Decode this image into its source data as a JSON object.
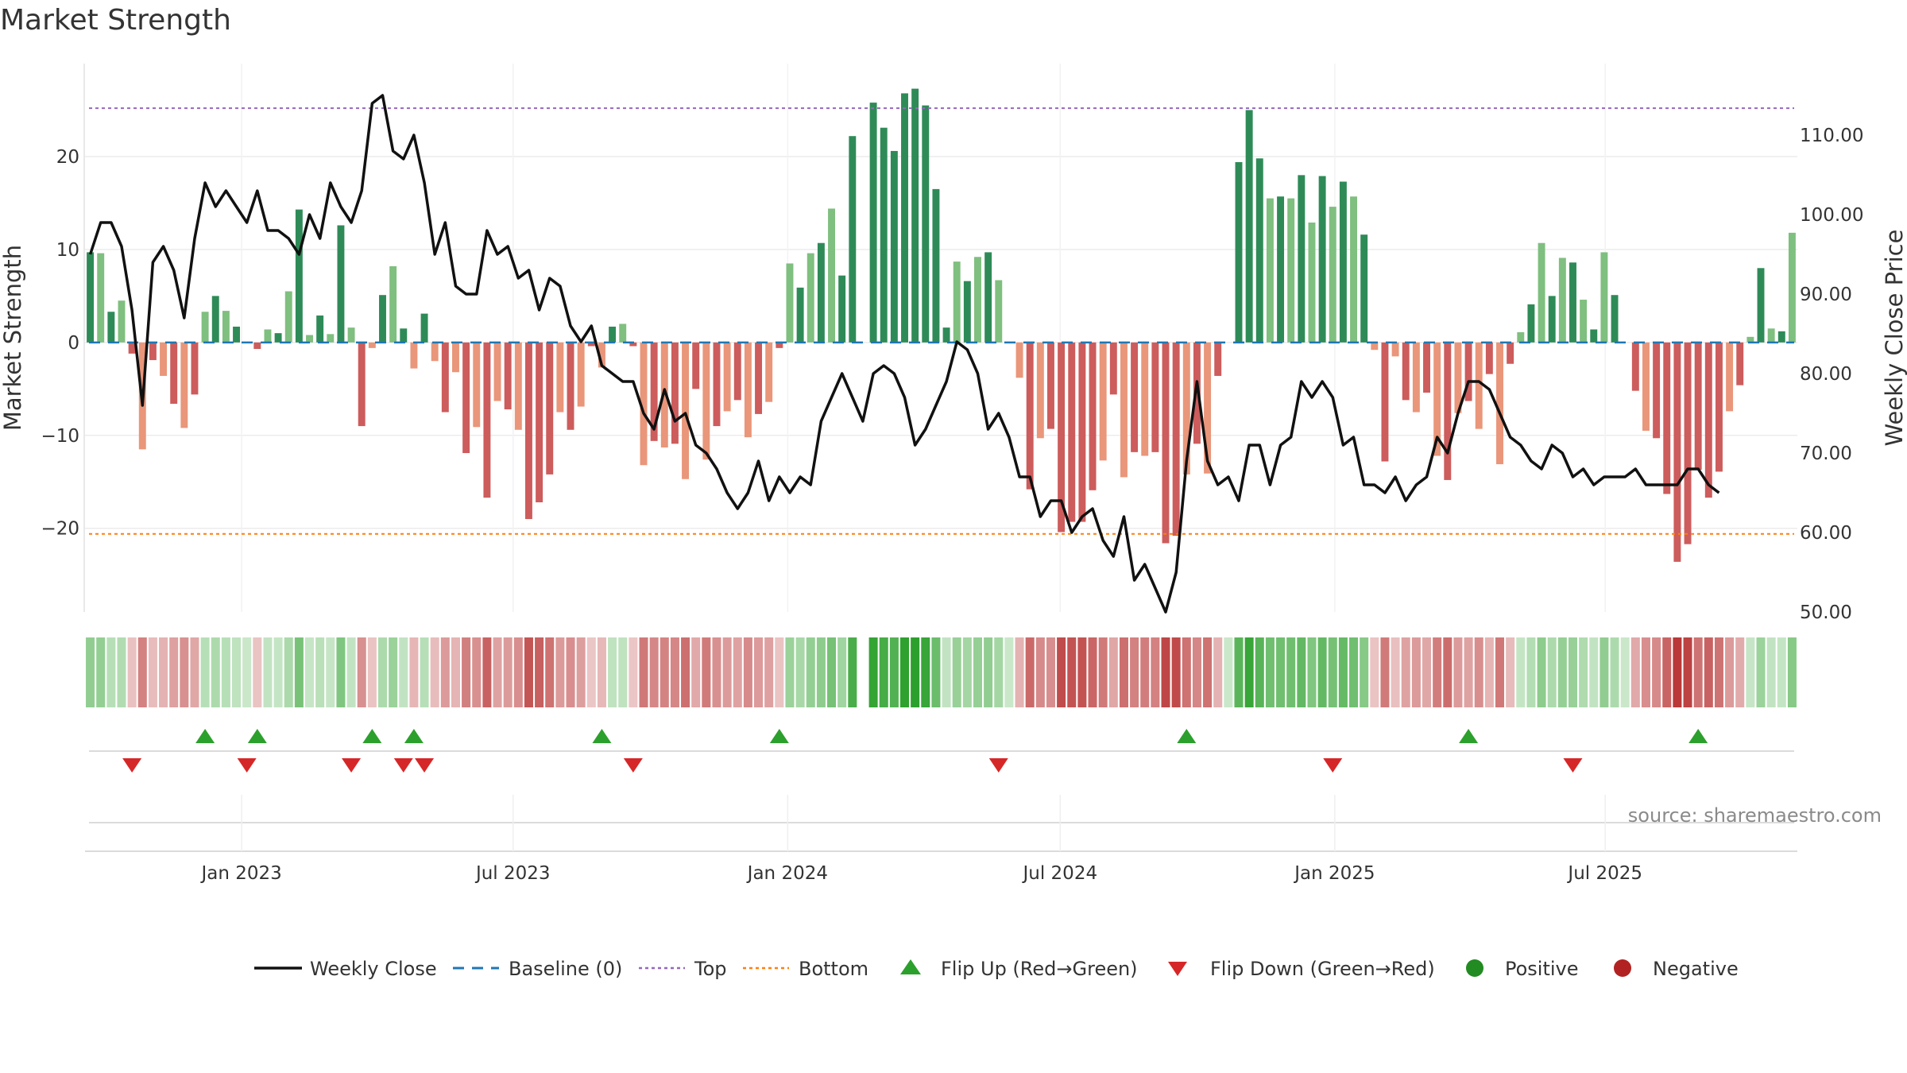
{
  "chart_data": {
    "type": "bar+line",
    "title": "Market Strength",
    "ylabel_left": "Market Strength",
    "ylabel_right": "Weekly Close Price",
    "left_ticks": [
      "20",
      "10",
      "0",
      "−10",
      "−20"
    ],
    "left_tick_values": [
      20,
      10,
      0,
      -10,
      -20
    ],
    "ylim_left": [
      -29,
      30
    ],
    "right_ticks": [
      "110.00",
      "100.00",
      "90.00",
      "80.00",
      "70.00",
      "60.00",
      "50.00"
    ],
    "right_tick_values": [
      110,
      100,
      90,
      80,
      70,
      60,
      50
    ],
    "ylim_right": [
      50,
      119
    ],
    "x_ticks": [
      "Jan 2023",
      "Jul 2023",
      "Jan 2024",
      "Jul 2024",
      "Jan 2025",
      "Jul 2025"
    ],
    "x_tick_weeks": [
      15,
      41,
      67.3,
      93.4,
      119.7,
      145.6
    ],
    "top_level": 25.2,
    "bottom_level": -20.6,
    "strength": [
      9.7,
      9.6,
      3.3,
      4.5,
      -1.2,
      -11.5,
      -1.9,
      -3.6,
      -6.6,
      -9.2,
      -5.6,
      3.3,
      5.0,
      3.4,
      1.7,
      0,
      -0.7,
      1.4,
      1.0,
      5.5,
      14.3,
      0.8,
      2.9,
      0.9,
      12.6,
      1.6,
      -9.0,
      -0.6,
      5.1,
      8.2,
      1.5,
      -2.8,
      3.1,
      -2.0,
      -7.5,
      -3.2,
      -11.9,
      -9.1,
      -16.7,
      -6.3,
      -7.2,
      -9.4,
      -19.0,
      -17.2,
      -14.2,
      -7.5,
      -9.4,
      -6.9,
      -0.4,
      -2.7,
      1.7,
      2.0,
      -0.4,
      -13.2,
      -10.6,
      -11.3,
      -10.9,
      -14.7,
      -5.0,
      -12.6,
      -9.0,
      -7.4,
      -6.2,
      -10.2,
      -7.7,
      -6.4,
      -0.6,
      8.5,
      5.9,
      9.6,
      10.7,
      14.4,
      7.2,
      22.2,
      0,
      25.8,
      23.1,
      20.6,
      26.8,
      27.3,
      25.5,
      16.5,
      1.6,
      8.7,
      6.6,
      9.2,
      9.7,
      6.7,
      0,
      -3.8,
      -15.8,
      -10.3,
      -9.3,
      -20.4,
      -19.3,
      -19.3,
      -15.9,
      -12.7,
      -5.6,
      -14.5,
      -11.8,
      -12.2,
      -11.8,
      -21.6,
      -20.8,
      -14.2,
      -10.9,
      -14.1,
      -3.6,
      0,
      19.4,
      25.0,
      19.8,
      15.5,
      15.7,
      15.5,
      18.0,
      12.9,
      17.9,
      14.6,
      17.3,
      15.7,
      11.6,
      -0.8,
      -12.8,
      -1.5,
      -6.2,
      -7.5,
      -5.4,
      -12.2,
      -14.8,
      -7.6,
      -6.3,
      -9.3,
      -3.4,
      -13.1,
      -2.3,
      1.1,
      4.1,
      10.7,
      5.0,
      9.1,
      8.6,
      4.6,
      1.4,
      9.7,
      5.1,
      0,
      -5.2,
      -9.5,
      -10.3,
      -16.3,
      -23.6,
      -21.7,
      -13.7,
      -16.7,
      -13.9,
      -7.4,
      -4.6,
      0.6,
      8.0,
      1.5,
      1.2,
      11.8
    ],
    "price": [
      95,
      99,
      99,
      96,
      88,
      76,
      94,
      96,
      93,
      87,
      97,
      104,
      101,
      103,
      101,
      99,
      103,
      98,
      98,
      97,
      95,
      100,
      97,
      104,
      101,
      99,
      103,
      114,
      115,
      108,
      107,
      110,
      104,
      95,
      99,
      91,
      90,
      90,
      98,
      95,
      96,
      92,
      93,
      88,
      92,
      91,
      86,
      84,
      86,
      81,
      80,
      79,
      79,
      75,
      73,
      78,
      74,
      75,
      71,
      70,
      68,
      65,
      63,
      65,
      69,
      64,
      67,
      65,
      67,
      66,
      74,
      77,
      80,
      77,
      74,
      80,
      81,
      80,
      77,
      71,
      73,
      76,
      79,
      84,
      83,
      80,
      73,
      75,
      72,
      67,
      67,
      62,
      64,
      64,
      60,
      62,
      63,
      59,
      57,
      62,
      54,
      56,
      53,
      50,
      55,
      69,
      79,
      69,
      66,
      67,
      64,
      71,
      71,
      66,
      71,
      72,
      79,
      77,
      79,
      77,
      71,
      72,
      66,
      66,
      65,
      67,
      64,
      66,
      67,
      72,
      70,
      75,
      79,
      79,
      78,
      75,
      72,
      71,
      69,
      68,
      71,
      70,
      67,
      68,
      66,
      67,
      67,
      67,
      68,
      66,
      66,
      66,
      66,
      68,
      68,
      66,
      65
    ],
    "series": [
      {
        "name": "Weekly Close",
        "values_key": "price",
        "axis": "right"
      },
      {
        "name": "Market Strength",
        "values_key": "strength",
        "axis": "left"
      }
    ],
    "flip_up_weeks": [
      11,
      16,
      27,
      31,
      49,
      66,
      105,
      132,
      154
    ],
    "flip_down_weeks": [
      4,
      15,
      25,
      30,
      32,
      52,
      87,
      119,
      142
    ],
    "legend": {
      "placement": "bottom",
      "items": [
        {
          "label": "Weekly Close",
          "kind": "line",
          "color": "#111111"
        },
        {
          "label": "Baseline (0)",
          "kind": "dash",
          "color": "#1f77b4"
        },
        {
          "label": "Top",
          "kind": "dot",
          "color": "#9467bd"
        },
        {
          "label": "Bottom",
          "kind": "dot",
          "color": "#ff7f0e"
        },
        {
          "label": "Flip Up (Red→Green)",
          "kind": "tri-up",
          "color": "#2ca02c"
        },
        {
          "label": "Flip Down (Green→Red)",
          "kind": "tri-down",
          "color": "#d62728"
        },
        {
          "label": "Positive",
          "kind": "circle",
          "color": "#228b22"
        },
        {
          "label": "Negative",
          "kind": "circle",
          "color": "#b22222"
        }
      ]
    },
    "source": "source: sharemaestro.com",
    "colors": {
      "pos_strong": "#2e8b57",
      "pos_weak": "#7fbf7f",
      "neg_strong": "#cd5c5c",
      "neg_weak": "#e9967a",
      "price_line": "#111111",
      "baseline": "#1f77b4",
      "top": "#9467bd",
      "bottom": "#ff7f0e",
      "flip_up": "#2ca02c",
      "flip_down": "#d62728"
    }
  }
}
